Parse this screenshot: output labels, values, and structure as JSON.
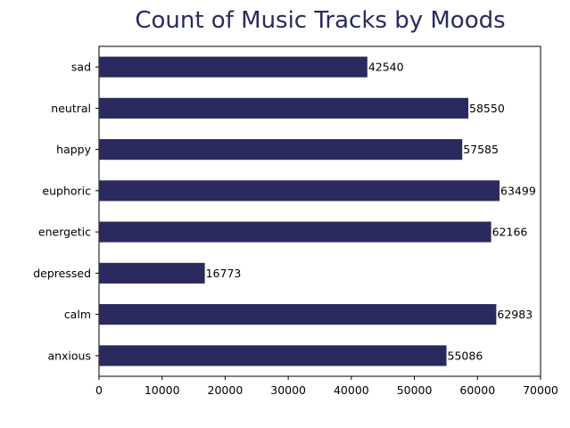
{
  "colors": {
    "bar": "#2b2a5e",
    "title": "#2b2a5e",
    "axis": "#000000",
    "background": "#ffffff"
  },
  "chart_data": {
    "type": "bar",
    "orientation": "horizontal",
    "title": "Count of Music Tracks by Moods",
    "xlabel": "",
    "ylabel": "",
    "categories": [
      "sad",
      "neutral",
      "happy",
      "euphoric",
      "energetic",
      "depressed",
      "calm",
      "anxious"
    ],
    "values": [
      42540,
      58550,
      57585,
      63499,
      62166,
      16773,
      62983,
      55086
    ],
    "xlim": [
      0,
      70000
    ],
    "xticks": [
      0,
      10000,
      20000,
      30000,
      40000,
      50000,
      60000,
      70000
    ],
    "grid": false,
    "legend": "none",
    "data_labels": true
  }
}
